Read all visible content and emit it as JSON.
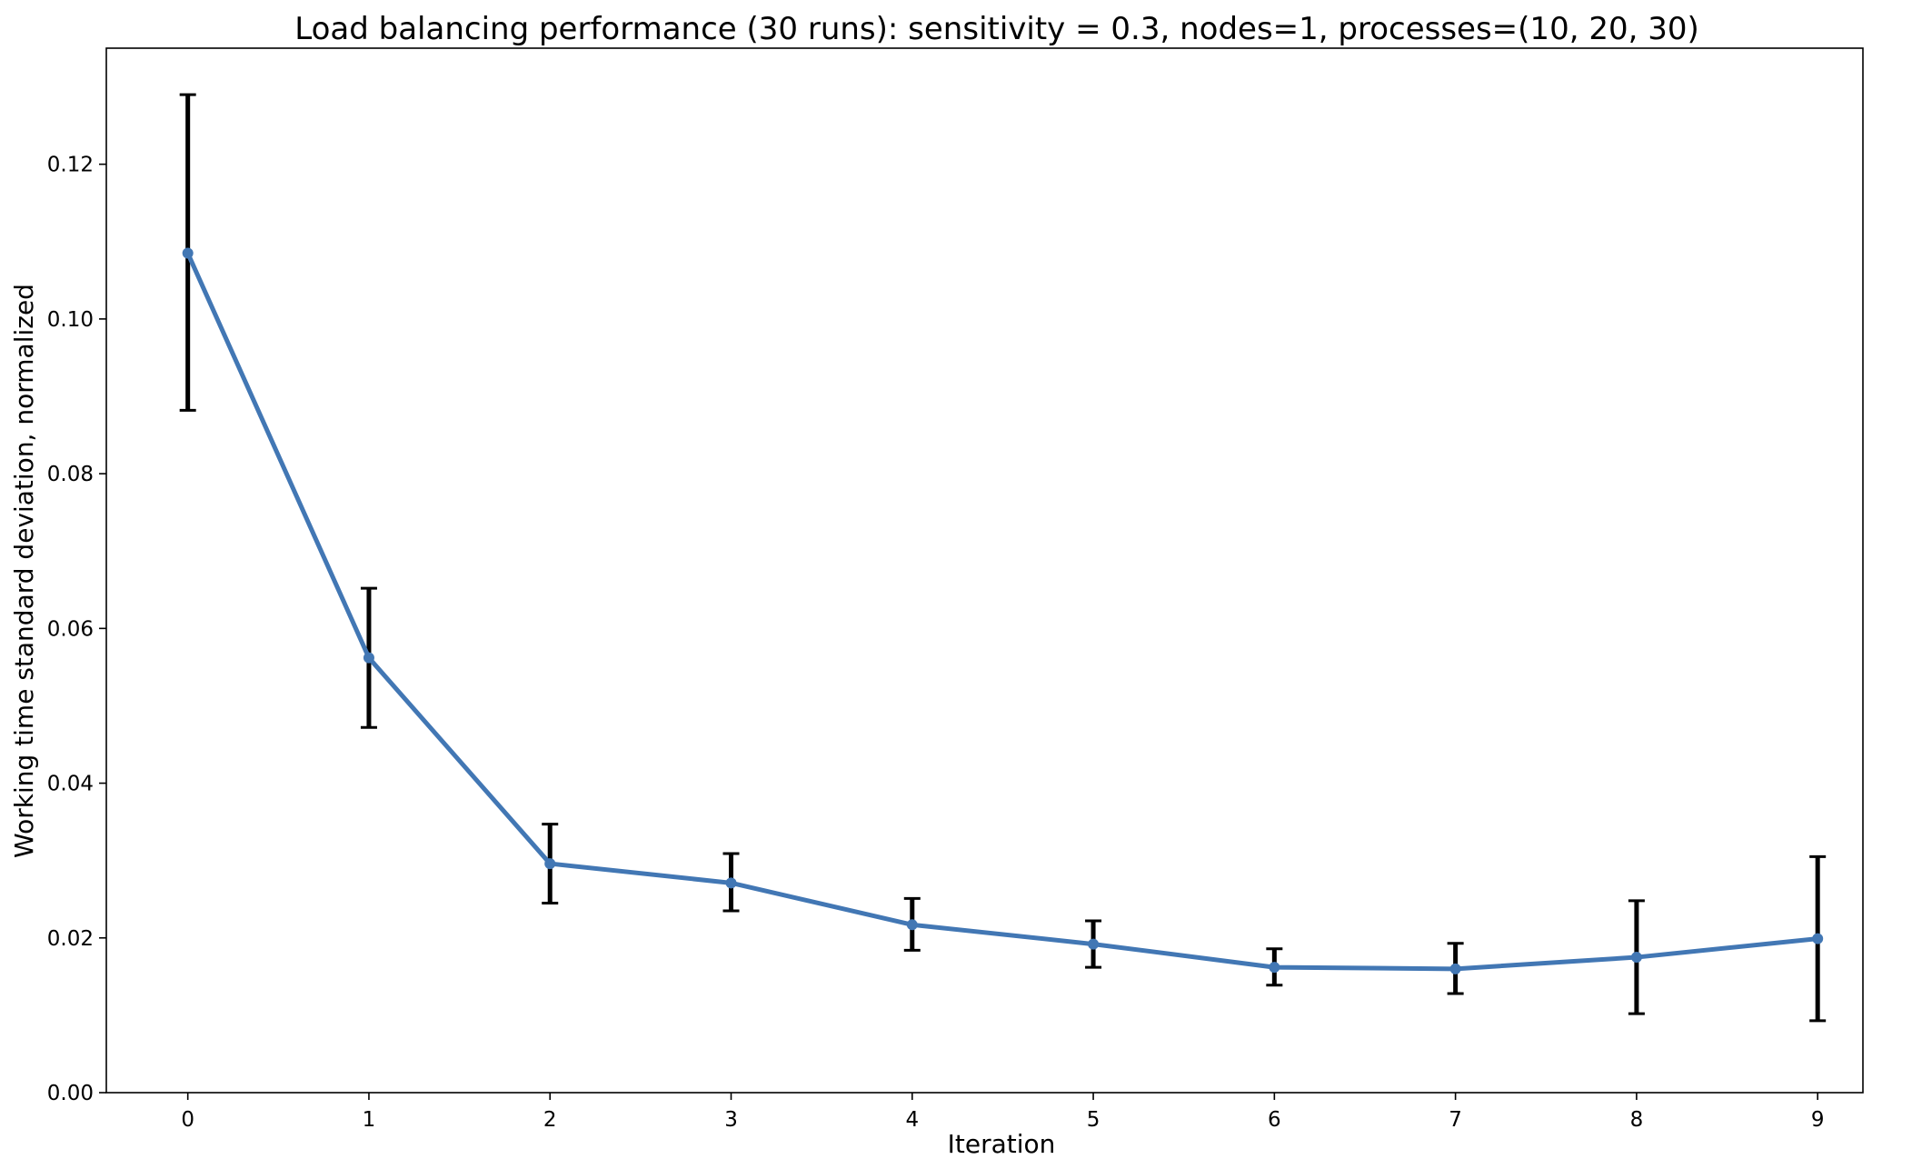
{
  "chart_data": {
    "type": "line",
    "title": "Load balancing performance (30 runs):  sensitivity = 0.3,  nodes=1,  processes=(10, 20, 30)",
    "xlabel": "Iteration",
    "ylabel": "Working time standard deviation, normalized",
    "x": [
      0,
      1,
      2,
      3,
      4,
      5,
      6,
      7,
      8,
      9
    ],
    "series": [
      {
        "values": [
          0.1085,
          0.0562,
          0.0296,
          0.0271,
          0.0217,
          0.0192,
          0.0162,
          0.016,
          0.0175,
          0.0199
        ],
        "error_lower": [
          0.0882,
          0.0472,
          0.0245,
          0.0235,
          0.0184,
          0.0162,
          0.0139,
          0.0128,
          0.0102,
          0.0093
        ],
        "error_upper": [
          0.129,
          0.0652,
          0.0347,
          0.0309,
          0.0251,
          0.0222,
          0.0186,
          0.0193,
          0.0248,
          0.0305
        ],
        "color": "#4277b4"
      }
    ],
    "xticks": [
      "0",
      "1",
      "2",
      "3",
      "4",
      "5",
      "6",
      "7",
      "8",
      "9"
    ],
    "yticks": [
      "0.00",
      "0.02",
      "0.04",
      "0.06",
      "0.08",
      "0.10",
      "0.12"
    ],
    "ylim": [
      0,
      0.135
    ],
    "xlim": [
      -0.45,
      9.25
    ],
    "grid": false,
    "legend": "none",
    "error_bar_color": "#000000",
    "axis_color": "#000000"
  }
}
